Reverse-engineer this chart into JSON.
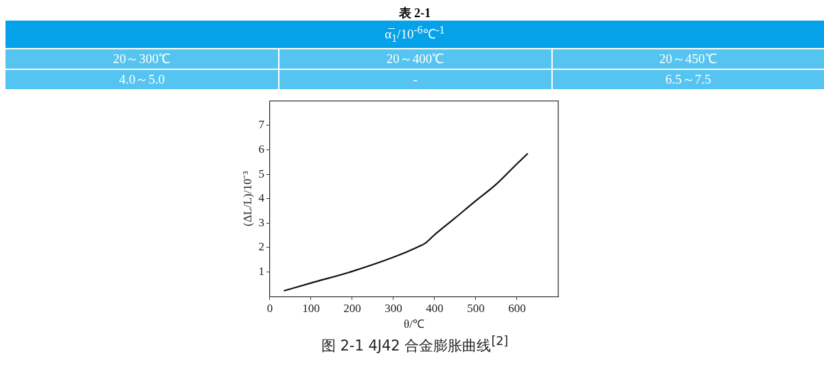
{
  "chart_data": [
    {
      "type": "other",
      "title": "表 2-1",
      "annotations": [
        "α̅$_{1}$/10$^{-6}$℃$^{-1}$",
        "20～300℃",
        "20～400℃",
        "20～450℃",
        "4.0～5.0",
        "-",
        "6.5～7.5"
      ]
    },
    {
      "type": "line",
      "title": "图 2-1 4J42 合金膨胀曲线$^{[2]}$",
      "xlabel": "θ/℃",
      "ylabel": "(ΔL/L)/10⁻³",
      "x": [
        34,
        100,
        199,
        301,
        356,
        379,
        399,
        449,
        498,
        548,
        600,
        626
      ],
      "series": [
        {
          "color": "#111111",
          "values": [
            0.23,
            0.55,
            1.02,
            1.61,
            2.0,
            2.2,
            2.51,
            3.2,
            3.89,
            4.57,
            5.43,
            5.85
          ]
        }
      ],
      "xlim": [
        0,
        700
      ],
      "xticks": [
        0,
        100,
        200,
        300,
        400,
        500,
        600
      ],
      "ylim": [
        0,
        8
      ],
      "yticks": [
        1,
        2,
        3,
        4,
        5,
        6,
        7
      ],
      "grid": false,
      "legend": false,
      "marker": "none",
      "line_style": "solid"
    }
  ]
}
